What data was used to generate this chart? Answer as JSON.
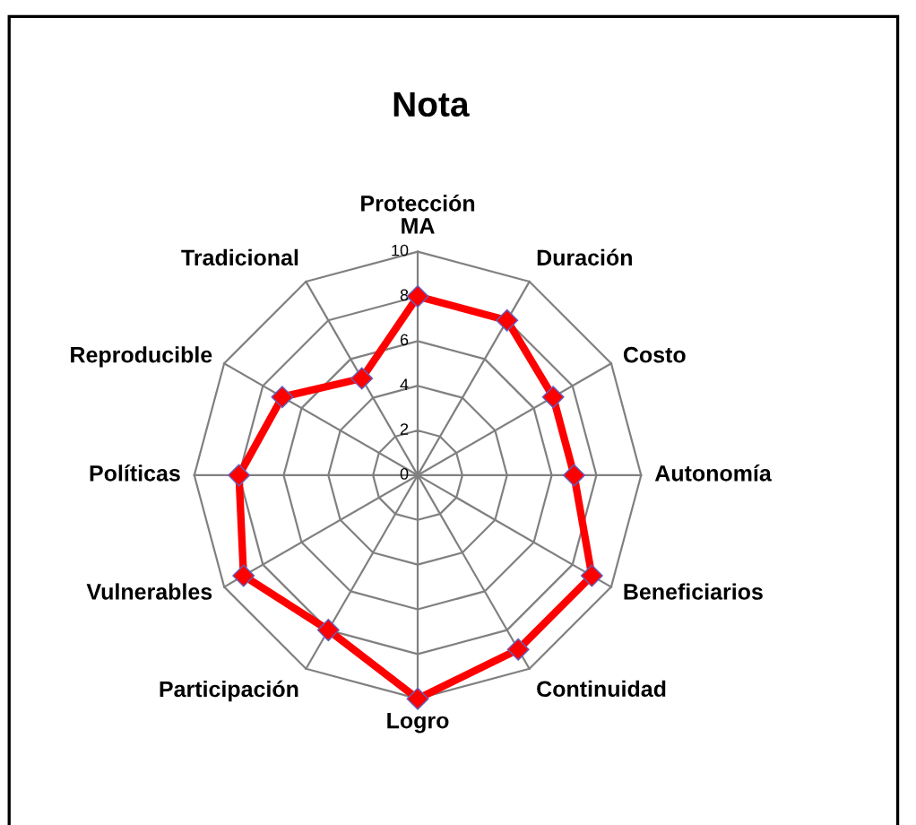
{
  "chart_data": {
    "type": "radar",
    "title": "Nota",
    "categories": [
      "Protección\nMA",
      "Duración",
      "Costo",
      "Autonomía",
      "Beneficiarios",
      "Continuidad",
      "Logro",
      "Participación",
      "Vulnerables",
      "Políticas",
      "Reproducible",
      "Tradicional"
    ],
    "series": [
      {
        "color": "#ff0000",
        "values": [
          8,
          8,
          7,
          7,
          9,
          9,
          10,
          8,
          9,
          8,
          7,
          5
        ]
      }
    ],
    "ylim": [
      0,
      10
    ],
    "yticks": [
      0,
      2,
      4,
      6,
      8,
      10
    ],
    "marker": "diamond",
    "line_style": "solid",
    "grid": true
  }
}
